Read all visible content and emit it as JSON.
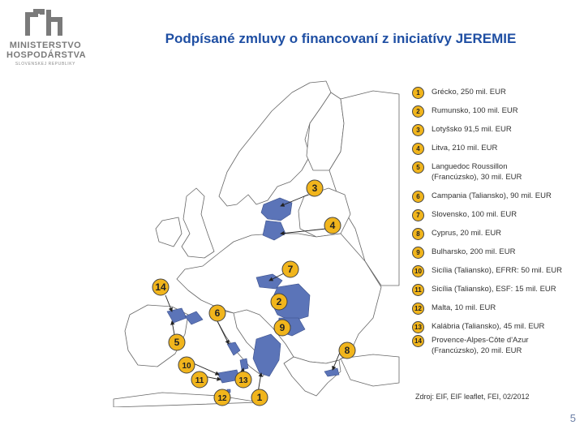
{
  "header": {
    "logo_line1": "MINISTERSTVO",
    "logo_line2": "HOSPODÁRSTVA",
    "logo_line3": "SLOVENSKEJ REPUBLIKY",
    "title": "Podpísané zmluvy o financovaní z iniciatívy JEREMIE"
  },
  "colors": {
    "badge": "#f1b51c",
    "highlight": "#5b74b8",
    "land": "#ffffff",
    "title": "#1f4fa3"
  },
  "legend": [
    {
      "num": "1",
      "text": "Grécko, 250 mil. EUR"
    },
    {
      "num": "2",
      "text": "Rumunsko, 100 mil. EUR"
    },
    {
      "num": "3",
      "text": "Lotyšsko 91,5 mil. EUR"
    },
    {
      "num": "4",
      "text": "Litva, 210 mil. EUR"
    },
    {
      "num": "5",
      "text": "Languedoc Roussillon",
      "text2": "(Francúzsko), 30 mil. EUR"
    },
    {
      "num": "6",
      "text": "Campania (Taliansko), 90 mil. EUR"
    },
    {
      "num": "7",
      "text": "Slovensko, 100 mil. EUR"
    },
    {
      "num": "8",
      "text": "Cyprus, 20 mil. EUR"
    },
    {
      "num": "9",
      "text": "Bulharsko, 200 mil. EUR"
    },
    {
      "num": "10",
      "text": "Sicília (Taliansko), EFRR: 50 mil. EUR"
    },
    {
      "num": "11",
      "text": "Sicília (Taliansko), ESF: 15 mil. EUR"
    },
    {
      "num": "12",
      "text": "Malta, 10 mil. EUR"
    },
    {
      "num": "13",
      "text": "Kalábria (Taliansko), 45 mil. EUR"
    },
    {
      "num": "14",
      "text": "Provence-Alpes-Côte d'Azur",
      "text2": "(Francúzsko), 20 mil. EUR"
    }
  ],
  "map_badges": [
    "3",
    "4",
    "7",
    "14",
    "2",
    "6",
    "9",
    "5",
    "8",
    "10",
    "11",
    "13",
    "12",
    "1"
  ],
  "source": "Zdroj: EIF, EIF leaflet, FEI, 02/2012",
  "page_number": "5"
}
